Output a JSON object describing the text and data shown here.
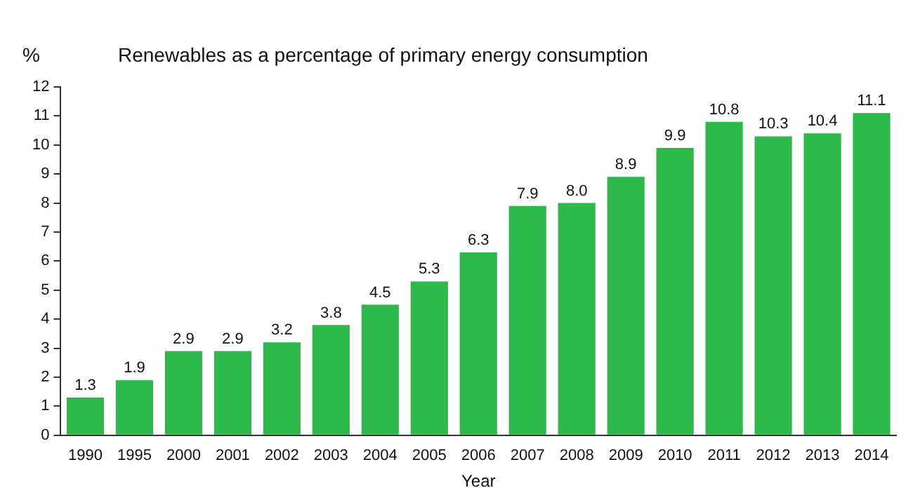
{
  "chart_data": {
    "type": "bar",
    "title": "Renewables as a percentage of primary energy consumption",
    "ylabel": "%",
    "xlabel": "Year",
    "categories": [
      "1990",
      "1995",
      "2000",
      "2001",
      "2002",
      "2003",
      "2004",
      "2005",
      "2006",
      "2007",
      "2008",
      "2009",
      "2010",
      "2011",
      "2012",
      "2013",
      "2014"
    ],
    "values": [
      1.3,
      1.9,
      2.9,
      2.9,
      3.2,
      3.8,
      4.5,
      5.3,
      6.3,
      7.9,
      8.0,
      8.9,
      9.9,
      10.8,
      10.3,
      10.4,
      11.1
    ],
    "value_labels": [
      "1.3",
      "1.9",
      "2.9",
      "2.9",
      "3.2",
      "3.8",
      "4.5",
      "5.3",
      "6.3",
      "7.9",
      "8.0",
      "8.9",
      "9.9",
      "10.8",
      "10.3",
      "10.4",
      "11.1"
    ],
    "color": "#2db84b",
    "ylim": [
      0,
      12
    ],
    "yticks": [
      0,
      1,
      2,
      3,
      4,
      5,
      6,
      7,
      8,
      9,
      10,
      11,
      12
    ],
    "grid": false,
    "legend": false
  }
}
